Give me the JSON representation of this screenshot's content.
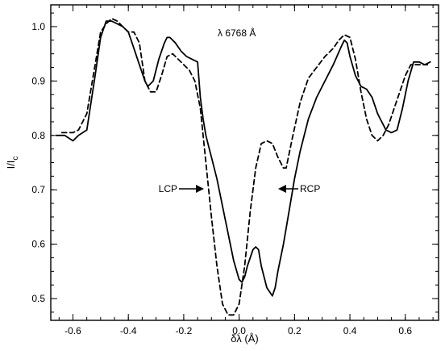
{
  "chart_data": {
    "type": "line",
    "title": "",
    "xlabel": "δλ (Å)",
    "ylabel": "I/I_c",
    "ylabel_main": "I/I",
    "ylabel_sub": "c",
    "xlim": [
      -0.68,
      0.72
    ],
    "ylim": [
      0.46,
      1.04
    ],
    "x_ticks": [
      -0.6,
      -0.4,
      -0.2,
      0.0,
      0.2,
      0.4,
      0.6
    ],
    "x_tick_labels": [
      "-0.6",
      "-0.4",
      "-0.2",
      "0.0",
      "0.2",
      "0.4",
      "0.6"
    ],
    "y_ticks": [
      0.5,
      0.6,
      0.7,
      0.8,
      0.9,
      1.0
    ],
    "y_tick_labels": [
      "0.5",
      "0.6",
      "0.7",
      "0.8",
      "0.9",
      "1.0"
    ],
    "x_minor_step": 0.05,
    "y_minor_step": 0.025,
    "grid": false,
    "annotations": {
      "wavelength": "λ 6768 Å",
      "lcp": "LCP",
      "rcp": "RCP"
    },
    "series": [
      {
        "style": "solid",
        "x": [
          -0.66,
          -0.63,
          -0.6,
          -0.58,
          -0.55,
          -0.52,
          -0.5,
          -0.48,
          -0.46,
          -0.44,
          -0.42,
          -0.4,
          -0.38,
          -0.36,
          -0.34,
          -0.33,
          -0.31,
          -0.29,
          -0.27,
          -0.26,
          -0.25,
          -0.23,
          -0.21,
          -0.19,
          -0.17,
          -0.15,
          -0.14,
          -0.13,
          -0.12,
          -0.11,
          -0.1,
          -0.08,
          -0.06,
          -0.04,
          -0.02,
          0.0,
          0.01,
          0.02,
          0.03,
          0.05,
          0.06,
          0.07,
          0.08,
          0.1,
          0.12,
          0.13,
          0.14,
          0.16,
          0.18,
          0.2,
          0.22,
          0.25,
          0.28,
          0.31,
          0.34,
          0.37,
          0.38,
          0.39,
          0.4,
          0.42,
          0.44,
          0.46,
          0.48,
          0.5,
          0.51,
          0.52,
          0.53,
          0.55,
          0.57,
          0.59,
          0.61,
          0.63,
          0.65,
          0.67,
          0.69
        ],
        "y": [
          0.8,
          0.8,
          0.79,
          0.8,
          0.81,
          0.91,
          0.98,
          1.01,
          1.01,
          1.005,
          1.0,
          0.99,
          0.96,
          0.93,
          0.9,
          0.89,
          0.9,
          0.94,
          0.97,
          0.98,
          0.98,
          0.97,
          0.955,
          0.945,
          0.94,
          0.935,
          0.87,
          0.83,
          0.8,
          0.78,
          0.76,
          0.72,
          0.67,
          0.62,
          0.57,
          0.535,
          0.53,
          0.54,
          0.56,
          0.59,
          0.595,
          0.59,
          0.56,
          0.52,
          0.505,
          0.52,
          0.55,
          0.6,
          0.66,
          0.72,
          0.77,
          0.83,
          0.87,
          0.9,
          0.93,
          0.965,
          0.975,
          0.97,
          0.945,
          0.91,
          0.89,
          0.885,
          0.87,
          0.84,
          0.83,
          0.82,
          0.81,
          0.805,
          0.81,
          0.85,
          0.9,
          0.935,
          0.935,
          0.93,
          0.935
        ]
      },
      {
        "style": "dashed",
        "x": [
          -0.64,
          -0.6,
          -0.58,
          -0.55,
          -0.52,
          -0.5,
          -0.48,
          -0.46,
          -0.44,
          -0.42,
          -0.4,
          -0.38,
          -0.36,
          -0.34,
          -0.32,
          -0.3,
          -0.28,
          -0.26,
          -0.24,
          -0.22,
          -0.2,
          -0.18,
          -0.16,
          -0.14,
          -0.12,
          -0.1,
          -0.08,
          -0.06,
          -0.04,
          -0.02,
          0.0,
          0.02,
          0.04,
          0.06,
          0.08,
          0.1,
          0.12,
          0.14,
          0.16,
          0.17,
          0.19,
          0.22,
          0.25,
          0.28,
          0.31,
          0.34,
          0.36,
          0.38,
          0.4,
          0.42,
          0.44,
          0.46,
          0.48,
          0.5,
          0.52,
          0.54,
          0.56,
          0.58,
          0.6,
          0.62,
          0.64,
          0.66,
          0.68
        ],
        "y": [
          0.805,
          0.805,
          0.81,
          0.84,
          0.93,
          0.99,
          1.005,
          1.015,
          1.01,
          1.0,
          0.99,
          0.99,
          0.97,
          0.9,
          0.88,
          0.88,
          0.91,
          0.945,
          0.95,
          0.94,
          0.93,
          0.92,
          0.9,
          0.85,
          0.75,
          0.65,
          0.56,
          0.49,
          0.47,
          0.47,
          0.49,
          0.56,
          0.66,
          0.74,
          0.785,
          0.79,
          0.785,
          0.76,
          0.74,
          0.74,
          0.79,
          0.86,
          0.905,
          0.925,
          0.945,
          0.96,
          0.975,
          0.985,
          0.98,
          0.94,
          0.88,
          0.83,
          0.8,
          0.79,
          0.8,
          0.82,
          0.85,
          0.88,
          0.91,
          0.93,
          0.93,
          0.93,
          0.93
        ]
      }
    ]
  }
}
